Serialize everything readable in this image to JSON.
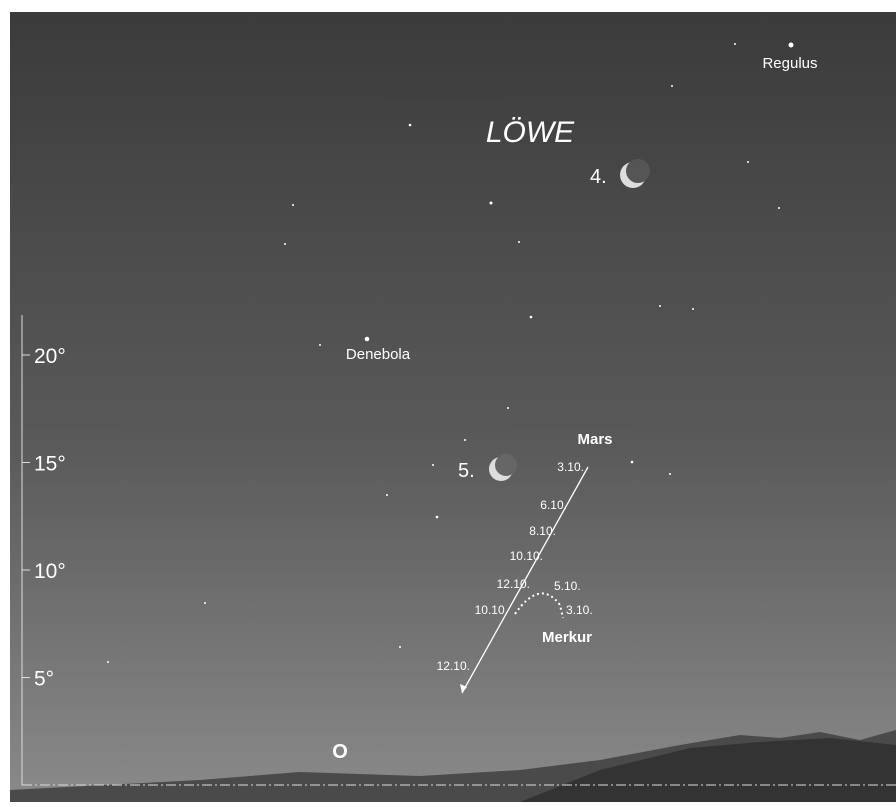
{
  "constellation": "LÖWE",
  "stars": [
    "Regulus",
    "Denebola"
  ],
  "moon": [
    "4.",
    "5."
  ],
  "altitude_axis": {
    "ticks": [
      {
        "value": 5,
        "label": "5°"
      },
      {
        "value": 10,
        "label": "10°"
      },
      {
        "value": 15,
        "label": "15°"
      },
      {
        "value": 20,
        "label": "20°"
      }
    ]
  },
  "mars": {
    "name": "Mars",
    "dates": [
      "3.10.",
      "6.10.",
      "8.10.",
      "10.10.",
      "12.10."
    ]
  },
  "merkur": {
    "name": "Merkur",
    "dates": [
      "5.10.",
      "3.10.",
      "10.10.",
      "12.10."
    ]
  },
  "direction": "O"
}
